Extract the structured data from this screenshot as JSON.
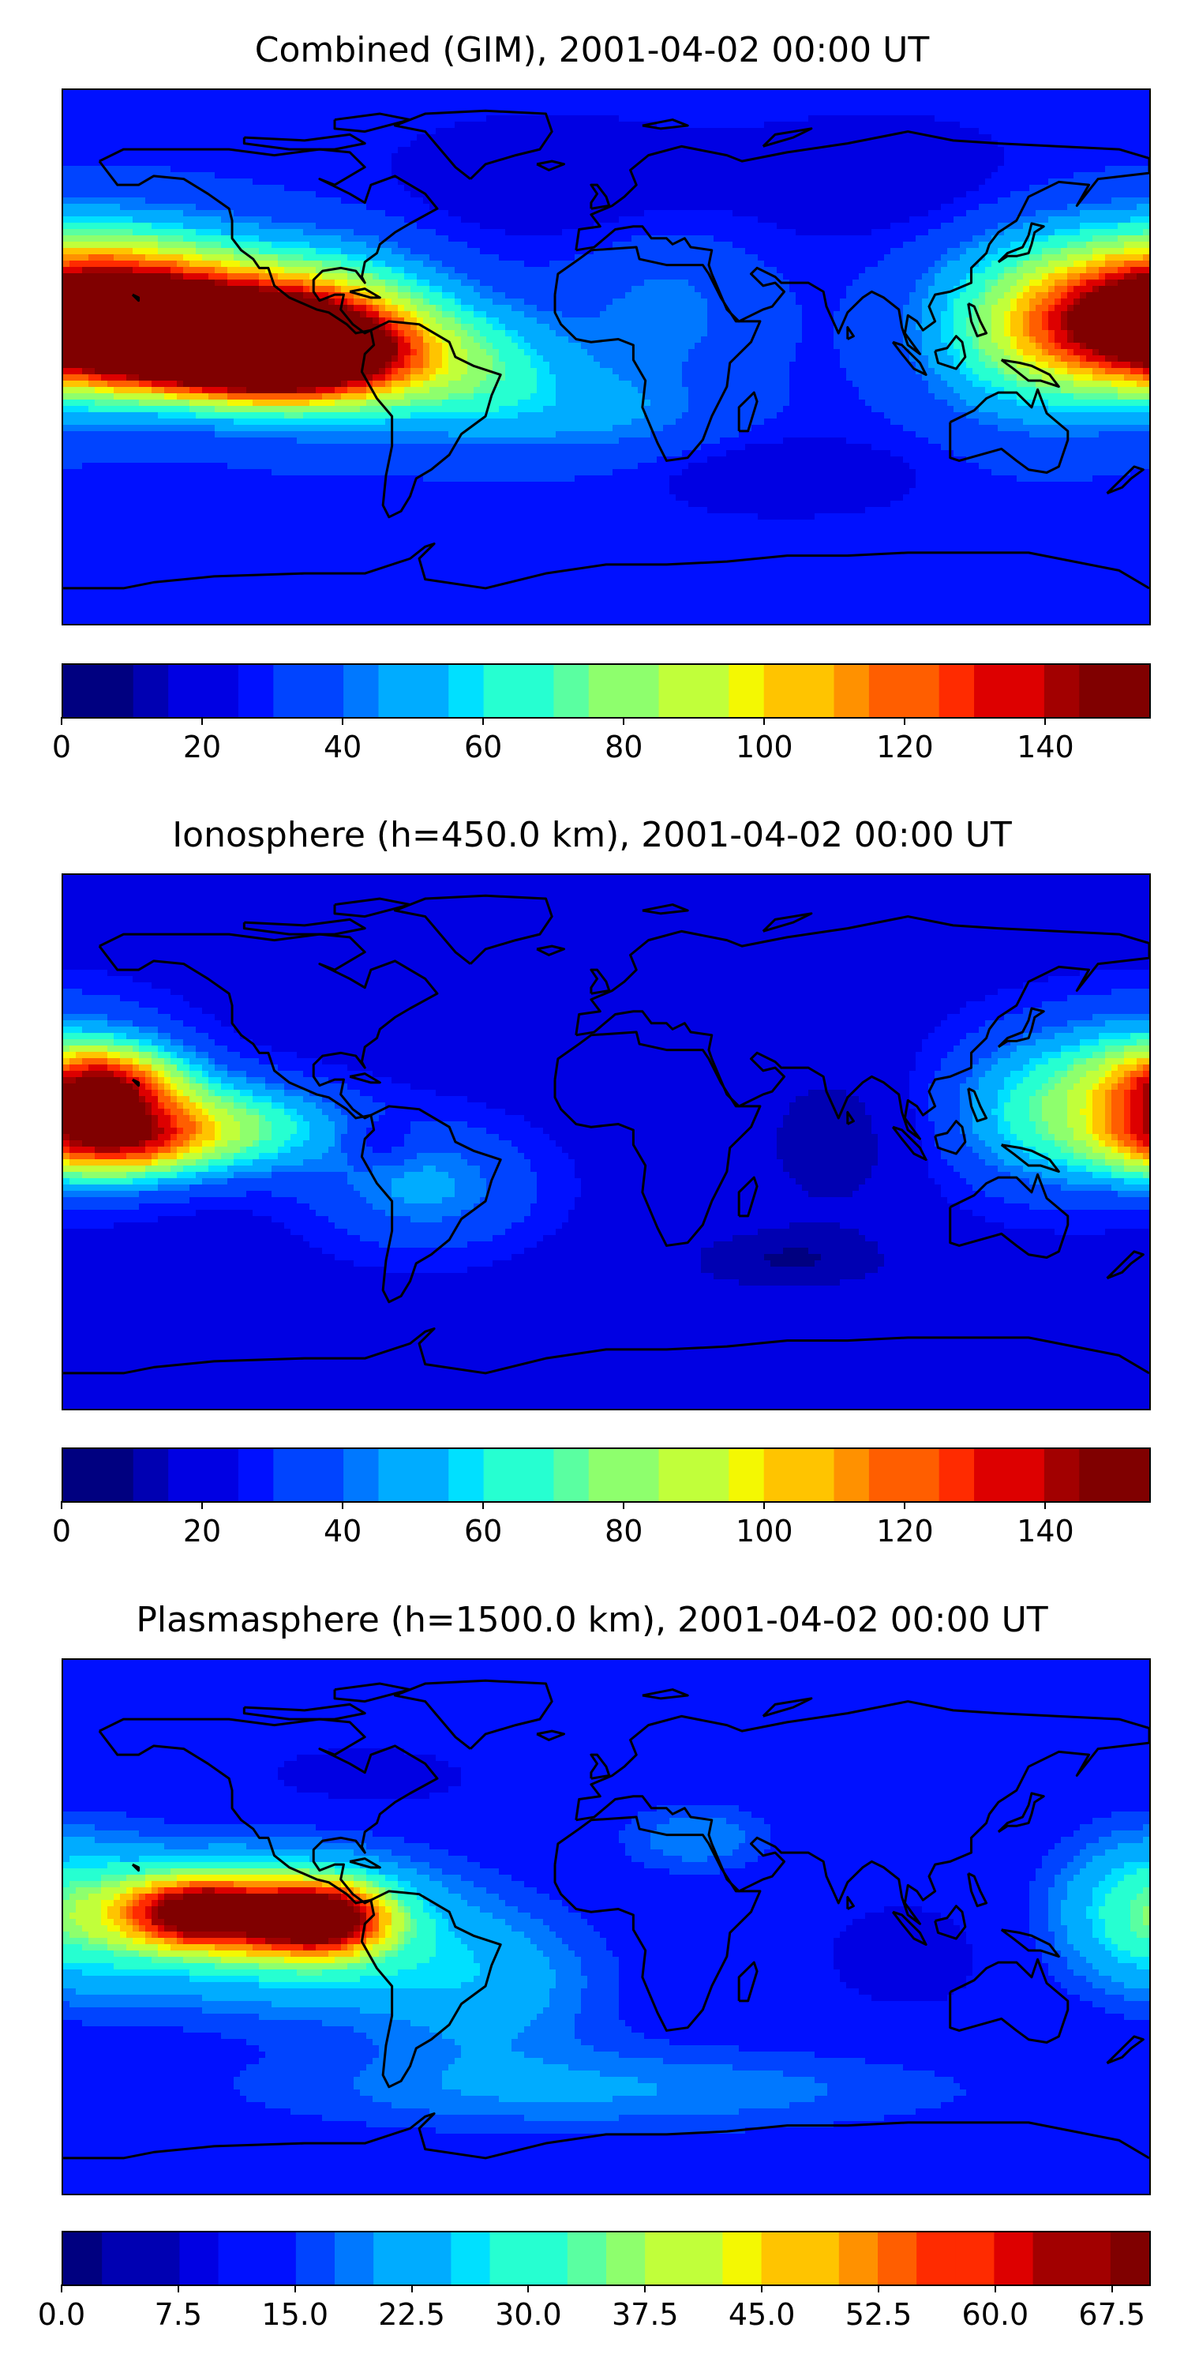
{
  "colors": {
    "jet": [
      "#000080",
      "#0000b2",
      "#0000e3",
      "#0010ff",
      "#0044ff",
      "#0078ff",
      "#00acff",
      "#00e0ff",
      "#26ffd1",
      "#5affa1",
      "#8eff6d",
      "#c1ff3a",
      "#f4f802",
      "#ffc400",
      "#ff9100",
      "#ff5e00",
      "#ff2b00",
      "#dd0000",
      "#a20000",
      "#800000"
    ],
    "coastline": "#000000",
    "frame": "#000000"
  },
  "panels": [
    {
      "title": "Combined (GIM), 2001-04-02 00:00 UT",
      "colorbar": {
        "min": 0,
        "max": 155,
        "levels": 31,
        "ticks": [
          "0",
          "20",
          "40",
          "60",
          "80",
          "100",
          "120",
          "140"
        ],
        "tick_values": [
          0,
          20,
          40,
          60,
          80,
          100,
          120,
          140
        ]
      },
      "field": {
        "background": 28,
        "blobs": [
          {
            "lon": -140,
            "lat": 8,
            "value": 120,
            "rlon": 55,
            "rlat": 18
          },
          {
            "lon": -112,
            "lat": 0,
            "value": 105,
            "rlon": 40,
            "rlat": 14
          },
          {
            "lon": -95,
            "lat": 8,
            "value": 70,
            "rlon": 38,
            "rlat": 25
          },
          {
            "lon": -150,
            "lat": 25,
            "value": 40,
            "rlon": 40,
            "rlat": 20
          },
          {
            "lon": -45,
            "lat": -5,
            "value": 35,
            "rlon": 35,
            "rlat": 20
          },
          {
            "lon": 180,
            "lat": 15,
            "value": 85,
            "rlon": 40,
            "rlat": 25
          },
          {
            "lon": 140,
            "lat": 10,
            "value": 40,
            "rlon": 35,
            "rlat": 30
          },
          {
            "lon": 20,
            "lat": 15,
            "value": 15,
            "rlon": 30,
            "rlat": 25
          },
          {
            "lon": 0,
            "lat": -20,
            "value": 15,
            "rlon": 40,
            "rlat": 15
          },
          {
            "lon": 60,
            "lat": -40,
            "value": -12,
            "rlon": 40,
            "rlat": 12
          },
          {
            "lon": -20,
            "lat": 60,
            "value": -10,
            "rlon": 50,
            "rlat": 20
          },
          {
            "lon": 90,
            "lat": 60,
            "value": -10,
            "rlon": 50,
            "rlat": 20
          }
        ]
      }
    },
    {
      "title": "Ionosphere  (h=450.0 km), 2001-04-02 00:00 UT",
      "colorbar": {
        "min": 0,
        "max": 155,
        "levels": 31,
        "ticks": [
          "0",
          "20",
          "40",
          "60",
          "80",
          "100",
          "120",
          "140"
        ],
        "tick_values": [
          0,
          20,
          40,
          60,
          80,
          100,
          120,
          140
        ]
      },
      "field": {
        "background": 22,
        "blobs": [
          {
            "lon": -165,
            "lat": 20,
            "value": 70,
            "rlon": 25,
            "rlat": 12
          },
          {
            "lon": -165,
            "lat": 0,
            "value": 70,
            "rlon": 30,
            "rlat": 12
          },
          {
            "lon": -130,
            "lat": 5,
            "value": 55,
            "rlon": 40,
            "rlat": 15
          },
          {
            "lon": -75,
            "lat": 0,
            "value": -15,
            "rlon": 12,
            "rlat": 8
          },
          {
            "lon": -60,
            "lat": -15,
            "value": 25,
            "rlon": 35,
            "rlat": 20
          },
          {
            "lon": 180,
            "lat": 15,
            "value": 60,
            "rlon": 35,
            "rlat": 25
          },
          {
            "lon": 140,
            "lat": 10,
            "value": 30,
            "rlon": 30,
            "rlat": 25
          },
          {
            "lon": 75,
            "lat": 0,
            "value": -12,
            "rlon": 25,
            "rlat": 25
          },
          {
            "lon": 60,
            "lat": -40,
            "value": -12,
            "rlon": 40,
            "rlat": 12
          }
        ]
      }
    },
    {
      "title": "Plasmasphere (h=1500.0 km), 2001-04-02 00:00 UT",
      "colorbar": {
        "min": 0,
        "max": 70,
        "levels": 28,
        "ticks": [
          "0.0",
          "7.5",
          "15.0",
          "22.5",
          "30.0",
          "37.5",
          "45.0",
          "52.5",
          "60.0",
          "67.5"
        ],
        "tick_values": [
          0,
          7.5,
          15,
          22.5,
          30,
          37.5,
          45,
          52.5,
          60,
          67.5
        ]
      },
      "field": {
        "background": 12,
        "blobs": [
          {
            "lon": -135,
            "lat": 5,
            "value": 48,
            "rlon": 25,
            "rlat": 12
          },
          {
            "lon": -95,
            "lat": 3,
            "value": 52,
            "rlon": 22,
            "rlat": 12
          },
          {
            "lon": -110,
            "lat": 0,
            "value": 22,
            "rlon": 55,
            "rlat": 25
          },
          {
            "lon": -40,
            "lat": -20,
            "value": 10,
            "rlon": 40,
            "rlat": 25
          },
          {
            "lon": 180,
            "lat": 5,
            "value": 18,
            "rlon": 30,
            "rlat": 25
          },
          {
            "lon": 30,
            "lat": 30,
            "value": 8,
            "rlon": 25,
            "rlat": 12
          },
          {
            "lon": 100,
            "lat": -10,
            "value": -4,
            "rlon": 30,
            "rlat": 20
          },
          {
            "lon": -80,
            "lat": 50,
            "value": -4,
            "rlon": 40,
            "rlat": 12
          },
          {
            "lon": 0,
            "lat": -55,
            "value": 8,
            "rlon": 120,
            "rlat": 15
          }
        ]
      }
    }
  ]
}
